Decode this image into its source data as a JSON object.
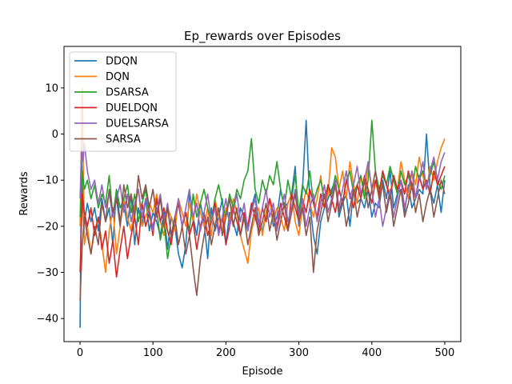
{
  "chart_data": {
    "type": "line",
    "title": "Ep_rewards over Episodes",
    "xlabel": "Episode",
    "ylabel": "Rewards",
    "xlim": [
      -22,
      522
    ],
    "ylim": [
      -45,
      19
    ],
    "xticks": [
      0,
      100,
      200,
      300,
      400,
      500
    ],
    "yticks": [
      -40,
      -30,
      -20,
      -10,
      0,
      10
    ],
    "legend_position": "top-left",
    "grid": false,
    "series": [
      {
        "name": "DDQN",
        "color": "#1f77b4",
        "x": [
          0,
          2,
          5,
          10,
          15,
          20,
          25,
          30,
          35,
          40,
          45,
          50,
          55,
          60,
          65,
          70,
          75,
          80,
          85,
          90,
          95,
          100,
          105,
          110,
          115,
          120,
          125,
          130,
          135,
          140,
          145,
          150,
          155,
          160,
          165,
          170,
          175,
          180,
          185,
          190,
          195,
          200,
          205,
          210,
          215,
          220,
          225,
          230,
          235,
          240,
          245,
          250,
          255,
          260,
          265,
          270,
          275,
          280,
          285,
          290,
          295,
          300,
          305,
          310,
          315,
          320,
          325,
          330,
          335,
          340,
          345,
          350,
          355,
          360,
          365,
          370,
          375,
          380,
          385,
          390,
          395,
          400,
          405,
          410,
          415,
          420,
          425,
          430,
          435,
          440,
          445,
          450,
          455,
          460,
          465,
          470,
          475,
          480,
          485,
          490,
          495,
          500
        ],
        "y": [
          -42,
          -5,
          -20,
          -15,
          -19,
          -16,
          -21,
          -14,
          -19,
          -16,
          -24,
          -12,
          -19,
          -15,
          -20,
          -13,
          -24,
          -16,
          -20,
          -14,
          -21,
          -17,
          -19,
          -22,
          -17,
          -25,
          -18,
          -20,
          -26,
          -29,
          -24,
          -13,
          -18,
          -22,
          -15,
          -19,
          -27,
          -16,
          -21,
          -18,
          -14,
          -24,
          -17,
          -19,
          -22,
          -16,
          -18,
          -21,
          -16,
          -13,
          -19,
          -21,
          -17,
          -14,
          -20,
          -18,
          -12,
          -16,
          -15,
          -13,
          -7,
          -20,
          -12,
          3,
          -15,
          -22,
          -26,
          -19,
          -16,
          -14,
          -12,
          -10,
          -18,
          -15,
          -13,
          -20,
          -12,
          -15,
          -14,
          -16,
          -12,
          -18,
          -15,
          -16,
          -10,
          -14,
          -8,
          -16,
          -13,
          -12,
          -17,
          -11,
          -16,
          -14,
          -12,
          -13,
          0,
          -12,
          -15,
          -11,
          -17,
          -10
        ]
      },
      {
        "name": "DQN",
        "color": "#ff7f0e",
        "x": [
          0,
          3,
          6,
          10,
          15,
          20,
          25,
          30,
          35,
          40,
          45,
          50,
          55,
          60,
          65,
          70,
          75,
          80,
          85,
          90,
          95,
          100,
          105,
          110,
          115,
          120,
          125,
          130,
          135,
          140,
          145,
          150,
          155,
          160,
          165,
          170,
          175,
          180,
          185,
          190,
          195,
          200,
          205,
          210,
          215,
          220,
          225,
          230,
          235,
          240,
          245,
          250,
          255,
          260,
          265,
          270,
          275,
          280,
          285,
          290,
          295,
          300,
          305,
          310,
          315,
          320,
          325,
          330,
          335,
          340,
          345,
          350,
          355,
          360,
          365,
          370,
          375,
          380,
          385,
          390,
          395,
          400,
          405,
          410,
          415,
          420,
          425,
          430,
          435,
          440,
          445,
          450,
          455,
          460,
          465,
          470,
          475,
          480,
          485,
          490,
          495,
          500
        ],
        "y": [
          -20,
          10,
          -24,
          -20,
          -26,
          -21,
          -18,
          -24,
          -30,
          -21,
          -16,
          -26,
          -20,
          -14,
          -18,
          -21,
          -16,
          -12,
          -20,
          -18,
          -15,
          -17,
          -13,
          -19,
          -22,
          -16,
          -18,
          -21,
          -14,
          -17,
          -20,
          -15,
          -19,
          -13,
          -17,
          -20,
          -16,
          -22,
          -14,
          -18,
          -21,
          -16,
          -19,
          -14,
          -17,
          -22,
          -25,
          -28,
          -21,
          -18,
          -16,
          -22,
          -17,
          -14,
          -19,
          -16,
          -18,
          -21,
          -15,
          -13,
          -19,
          -22,
          -16,
          -12,
          -15,
          -18,
          -14,
          -9,
          -16,
          -13,
          -3,
          -5,
          -12,
          -8,
          -14,
          -6,
          -11,
          -15,
          -9,
          -13,
          -7,
          -12,
          -10,
          -14,
          -8,
          -11,
          -13,
          -9,
          -12,
          -6,
          -10,
          -14,
          -8,
          -11,
          -5,
          -9,
          -12,
          -7,
          -10,
          -6,
          -3,
          -1
        ]
      },
      {
        "name": "DSARSA",
        "color": "#2ca02c",
        "x": [
          0,
          3,
          6,
          10,
          15,
          20,
          25,
          30,
          35,
          40,
          45,
          50,
          55,
          60,
          65,
          70,
          75,
          80,
          85,
          90,
          95,
          100,
          105,
          110,
          115,
          120,
          125,
          130,
          135,
          140,
          145,
          150,
          155,
          160,
          165,
          170,
          175,
          180,
          185,
          190,
          195,
          200,
          205,
          210,
          215,
          220,
          225,
          230,
          235,
          240,
          245,
          250,
          255,
          260,
          265,
          270,
          275,
          280,
          285,
          290,
          295,
          300,
          305,
          310,
          315,
          320,
          325,
          330,
          335,
          340,
          345,
          350,
          355,
          360,
          365,
          370,
          375,
          380,
          385,
          390,
          395,
          400,
          405,
          410,
          415,
          420,
          425,
          430,
          435,
          440,
          445,
          450,
          455,
          460,
          465,
          470,
          475,
          480,
          485,
          490,
          495,
          500
        ],
        "y": [
          -18,
          -8,
          -12,
          -10,
          -14,
          -11,
          -16,
          -13,
          -15,
          -9,
          -18,
          -12,
          -16,
          -14,
          -11,
          -17,
          -13,
          -19,
          -15,
          -12,
          -18,
          -20,
          -16,
          -23,
          -19,
          -27,
          -22,
          -18,
          -15,
          -20,
          -17,
          -21,
          -13,
          -18,
          -15,
          -12,
          -16,
          -19,
          -14,
          -11,
          -15,
          -18,
          -13,
          -16,
          -12,
          -14,
          -10,
          -8,
          -1,
          -12,
          -15,
          -10,
          -13,
          -9,
          -11,
          -6,
          -12,
          -16,
          -10,
          -14,
          -9,
          -17,
          -11,
          -13,
          -8,
          -15,
          -12,
          -10,
          -14,
          -11,
          -13,
          -9,
          -12,
          -15,
          -10,
          -8,
          -13,
          -11,
          -9,
          -14,
          -10,
          3,
          -8,
          -12,
          -9,
          -11,
          -7,
          -10,
          -13,
          -8,
          -11,
          -9,
          -12,
          -7,
          -10,
          -8,
          -11,
          -9,
          -6,
          -10,
          -12,
          -9
        ]
      },
      {
        "name": "DUELDQN",
        "color": "#d62728",
        "x": [
          0,
          3,
          6,
          10,
          15,
          20,
          25,
          30,
          35,
          40,
          45,
          50,
          55,
          60,
          65,
          70,
          75,
          80,
          85,
          90,
          95,
          100,
          105,
          110,
          115,
          120,
          125,
          130,
          135,
          140,
          145,
          150,
          155,
          160,
          165,
          170,
          175,
          180,
          185,
          190,
          195,
          200,
          205,
          210,
          215,
          220,
          225,
          230,
          235,
          240,
          245,
          250,
          255,
          260,
          265,
          270,
          275,
          280,
          285,
          290,
          295,
          300,
          305,
          310,
          315,
          320,
          325,
          330,
          335,
          340,
          345,
          350,
          355,
          360,
          365,
          370,
          375,
          380,
          385,
          390,
          395,
          400,
          405,
          410,
          415,
          420,
          425,
          430,
          435,
          440,
          445,
          450,
          455,
          460,
          465,
          470,
          475,
          480,
          485,
          490,
          495,
          500
        ],
        "y": [
          -30,
          -13,
          -17,
          -20,
          -16,
          -22,
          -18,
          -25,
          -21,
          -28,
          -23,
          -31,
          -25,
          -20,
          -27,
          -22,
          -18,
          -24,
          -15,
          -20,
          -17,
          -22,
          -14,
          -19,
          -16,
          -21,
          -24,
          -18,
          -15,
          -20,
          -17,
          -22,
          -19,
          -25,
          -20,
          -17,
          -22,
          -19,
          -15,
          -21,
          -18,
          -24,
          -20,
          -16,
          -19,
          -22,
          -17,
          -20,
          -15,
          -18,
          -21,
          -16,
          -19,
          -14,
          -17,
          -20,
          -15,
          -18,
          -21,
          -13,
          -16,
          -19,
          -14,
          -17,
          -12,
          -15,
          -18,
          -13,
          -16,
          -11,
          -14,
          -17,
          -12,
          -15,
          -10,
          -13,
          -16,
          -11,
          -14,
          -9,
          -12,
          -15,
          -10,
          -13,
          -8,
          -11,
          -14,
          -9,
          -12,
          -10,
          -13,
          -8,
          -11,
          -14,
          -9,
          -12,
          -10,
          -13,
          -8,
          -11,
          -9,
          -7
        ]
      },
      {
        "name": "DUELSARSA",
        "color": "#9467bd",
        "x": [
          0,
          2,
          4,
          6,
          10,
          15,
          20,
          25,
          30,
          35,
          40,
          45,
          50,
          55,
          60,
          65,
          70,
          75,
          80,
          85,
          90,
          95,
          100,
          105,
          110,
          115,
          120,
          125,
          130,
          135,
          140,
          145,
          150,
          155,
          160,
          165,
          170,
          175,
          180,
          185,
          190,
          195,
          200,
          205,
          210,
          215,
          220,
          225,
          230,
          235,
          240,
          245,
          250,
          255,
          260,
          265,
          270,
          275,
          280,
          285,
          290,
          295,
          300,
          305,
          310,
          315,
          320,
          325,
          330,
          335,
          340,
          345,
          350,
          355,
          360,
          365,
          370,
          375,
          380,
          385,
          390,
          395,
          400,
          405,
          410,
          415,
          420,
          425,
          430,
          435,
          440,
          445,
          450,
          455,
          460,
          465,
          470,
          475,
          480,
          485,
          490,
          495,
          500
        ],
        "y": [
          -14,
          -3,
          -6,
          -2,
          -8,
          -12,
          -10,
          -15,
          -11,
          -16,
          -13,
          -18,
          -14,
          -11,
          -17,
          -13,
          -19,
          -15,
          -12,
          -18,
          -14,
          -16,
          -21,
          -17,
          -13,
          -19,
          -15,
          -22,
          -18,
          -14,
          -20,
          -16,
          -12,
          -18,
          -15,
          -21,
          -17,
          -13,
          -19,
          -16,
          -22,
          -18,
          -14,
          -20,
          -17,
          -13,
          -19,
          -15,
          -21,
          -17,
          -14,
          -20,
          -16,
          -12,
          -18,
          -15,
          -21,
          -17,
          -13,
          -19,
          -16,
          -12,
          -18,
          -14,
          -20,
          -16,
          -13,
          -19,
          -15,
          -11,
          -17,
          -14,
          -10,
          -16,
          -12,
          -8,
          -14,
          -11,
          -7,
          -13,
          -10,
          -6,
          -12,
          -18,
          -14,
          -20,
          -16,
          -12,
          -18,
          -14,
          -10,
          -16,
          -12,
          -8,
          -14,
          -10,
          -6,
          -12,
          -8,
          -5,
          -10,
          -6,
          -4
        ]
      },
      {
        "name": "SARSA",
        "color": "#8c564b",
        "x": [
          0,
          3,
          6,
          10,
          15,
          20,
          25,
          30,
          35,
          40,
          45,
          50,
          55,
          60,
          65,
          70,
          75,
          80,
          85,
          90,
          95,
          100,
          105,
          110,
          115,
          120,
          125,
          130,
          135,
          140,
          145,
          150,
          155,
          160,
          165,
          170,
          175,
          180,
          185,
          190,
          195,
          200,
          205,
          210,
          215,
          220,
          225,
          230,
          235,
          240,
          245,
          250,
          255,
          260,
          265,
          270,
          275,
          280,
          285,
          290,
          295,
          300,
          305,
          310,
          315,
          320,
          325,
          330,
          335,
          340,
          345,
          350,
          355,
          360,
          365,
          370,
          375,
          380,
          385,
          390,
          395,
          400,
          405,
          410,
          415,
          420,
          425,
          430,
          435,
          440,
          445,
          450,
          455,
          460,
          465,
          470,
          475,
          480,
          485,
          490,
          495,
          500
        ],
        "y": [
          -36,
          -24,
          -18,
          -22,
          -26,
          -20,
          -24,
          -15,
          -19,
          -12,
          -17,
          -14,
          -20,
          -11,
          -16,
          -13,
          -18,
          -9,
          -14,
          -11,
          -16,
          -12,
          -18,
          -14,
          -20,
          -16,
          -22,
          -18,
          -24,
          -20,
          -26,
          -22,
          -29,
          -35,
          -27,
          -22,
          -18,
          -24,
          -20,
          -16,
          -22,
          -18,
          -14,
          -20,
          -16,
          -22,
          -18,
          -24,
          -20,
          -16,
          -22,
          -19,
          -15,
          -21,
          -17,
          -23,
          -19,
          -15,
          -21,
          -17,
          -13,
          -19,
          -16,
          -22,
          -18,
          -30,
          -21,
          -17,
          -13,
          -19,
          -15,
          -11,
          -17,
          -14,
          -20,
          -16,
          -12,
          -18,
          -14,
          -10,
          -16,
          -12,
          -8,
          -14,
          -11,
          -17,
          -13,
          -20,
          -16,
          -12,
          -18,
          -15,
          -11,
          -17,
          -13,
          -19,
          -15,
          -12,
          -18,
          -14,
          -10,
          -13
        ]
      }
    ]
  }
}
